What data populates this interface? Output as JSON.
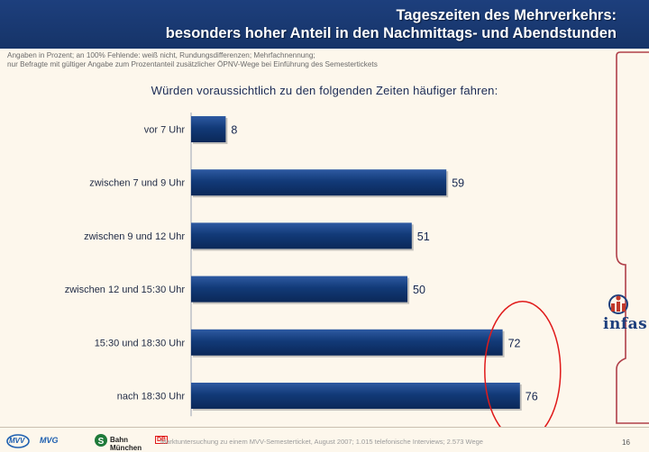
{
  "header": {
    "title_line1": "Tageszeiten des Mehrverkehrs:",
    "title_line2": "besonders hoher Anteil in den Nachmittags- und Abendstunden"
  },
  "note": {
    "line1": "Angaben in Prozent; an 100% Fehlende: weiß nicht, Rundungsdifferenzen; Mehrfachnennung;",
    "line2": "nur Befragte mit gültiger Angabe zum Prozentanteil zusätzlicher ÖPNV-Wege bei Einführung des Semestertickets"
  },
  "question": "Würden voraussichtlich zu den folgenden Zeiten häufiger fahren:",
  "chart_data": {
    "type": "bar",
    "orientation": "horizontal",
    "categories": [
      "vor 7 Uhr",
      "zwischen 7 und 9 Uhr",
      "zwischen 9 und 12 Uhr",
      "zwischen 12 und 15:30 Uhr",
      "15:30 und 18:30 Uhr",
      "nach 18:30 Uhr"
    ],
    "values": [
      8,
      59,
      51,
      50,
      72,
      76
    ],
    "xlim": [
      0,
      100
    ],
    "grid": false,
    "bar_color": "#123a78",
    "highlight": {
      "categories": [
        "15:30 und 18:30 Uhr",
        "nach 18:30 Uhr"
      ],
      "shape": "ellipse",
      "color": "#e01a1a"
    }
  },
  "logo": {
    "text": "infas",
    "color": "#1d3f7d"
  },
  "footer": {
    "logos": [
      "MVV",
      "MVG",
      "Bahn München",
      "DB"
    ],
    "source": "Marktuntersuchung zu einem MVV-Semesterticket, August 2007; 1.015 telefonische Interviews; 2.573 Wege",
    "page_number": "16"
  },
  "colors": {
    "header_bg": "#1a3a74",
    "accent_red": "#e01a1a",
    "tab_border": "#b0404a"
  }
}
